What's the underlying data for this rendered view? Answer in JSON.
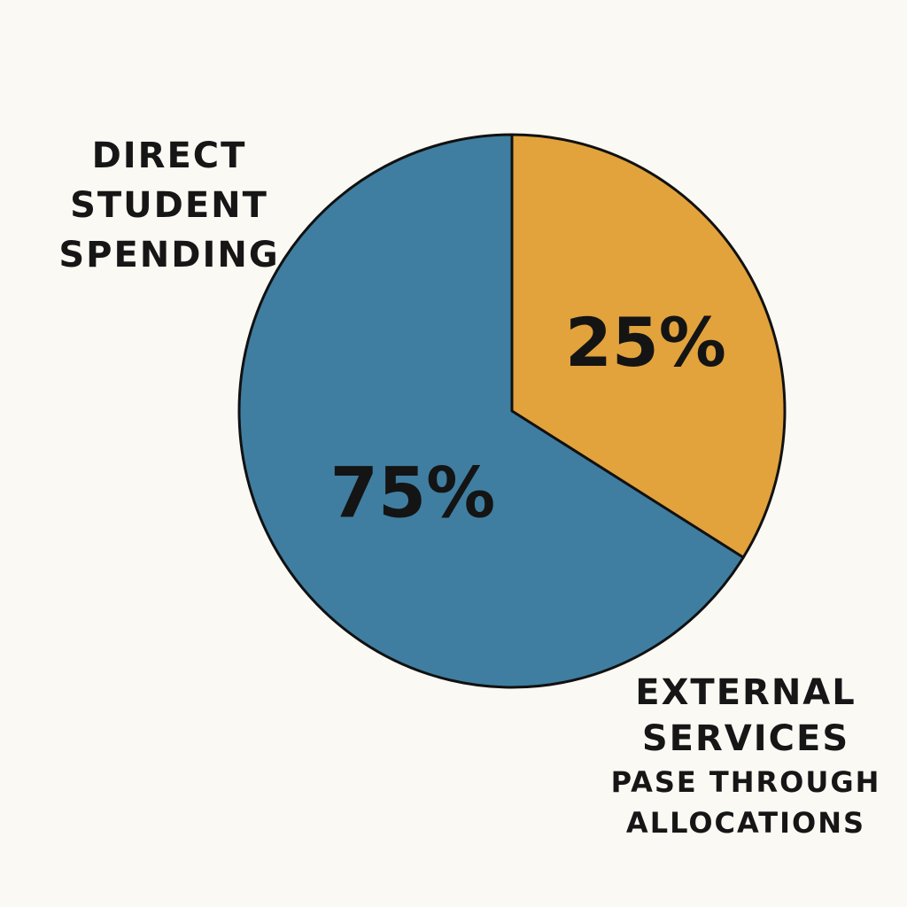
{
  "chart_data": {
    "type": "pie",
    "slices": [
      {
        "value": 25,
        "value_label": "25%",
        "color": "#e2a23c"
      },
      {
        "value": 75,
        "value_label": "75%",
        "color": "#3f7ea0"
      }
    ],
    "annotations": {
      "direct": [
        "DIRECT",
        "STUDENT",
        "SPENDING"
      ],
      "external": [
        "EXTERNAL",
        "SERVICES",
        "PASE THROUGH",
        "ALLOCATIONS"
      ]
    },
    "title": "",
    "legend": "none"
  }
}
